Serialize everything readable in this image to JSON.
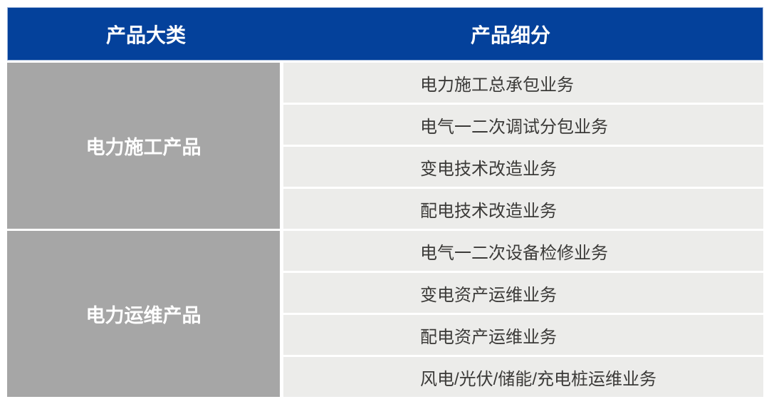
{
  "table": {
    "headers": [
      "产品大类",
      "产品细分"
    ],
    "groups": [
      {
        "category": "电力施工产品",
        "items": [
          "电力施工总承包业务",
          "电气一二次调试分包业务",
          "变电技术改造业务",
          "配电技术改造业务"
        ]
      },
      {
        "category": "电力运维产品",
        "items": [
          "电气一二次设备检修业务",
          "变电资产运维业务",
          "配电资产运维业务",
          "风电/光伏/储能/充电桩运维业务"
        ]
      }
    ],
    "colors": {
      "header_bg": "#04419B",
      "header_text": "#FFFFFF",
      "category_bg": "#A6A6A6",
      "category_text": "#FFFFFF",
      "row_bg": "#ECECEA",
      "row_text": "#3B3A38",
      "page_bg": "#FFFFFF"
    }
  },
  "chart_data": {
    "type": "table",
    "title": "",
    "columns": [
      "产品大类",
      "产品细分"
    ],
    "rows": [
      [
        "电力施工产品",
        "电力施工总承包业务"
      ],
      [
        "电力施工产品",
        "电气一二次调试分包业务"
      ],
      [
        "电力施工产品",
        "变电技术改造业务"
      ],
      [
        "电力施工产品",
        "配电技术改造业务"
      ],
      [
        "电力运维产品",
        "电气一二次设备检修业务"
      ],
      [
        "电力运维产品",
        "变电资产运维业务"
      ],
      [
        "电力运维产品",
        "配电资产运维业务"
      ],
      [
        "电力运维产品",
        "风电/光伏/储能/充电桩运维业务"
      ]
    ]
  }
}
